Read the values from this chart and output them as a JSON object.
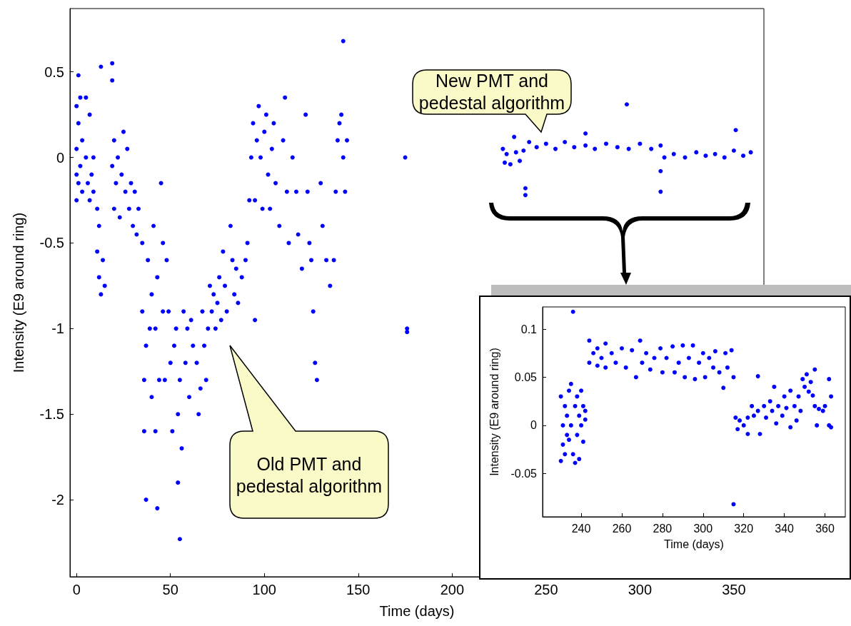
{
  "chart_data": [
    {
      "type": "scatter",
      "xlabel": "Time (days)",
      "ylabel": "Intensity (E9 around ring)",
      "marker": "circle",
      "grid": false,
      "xlim": [
        -3.5,
        366
      ],
      "ylim": [
        -2.45,
        0.87
      ],
      "xticks": [
        0,
        50,
        100,
        150,
        200,
        250,
        300,
        350
      ],
      "yticks": [
        -2,
        -1.5,
        -1,
        -0.5,
        0,
        0.5
      ],
      "annotations": [
        "New PMT and pedestal algorithm",
        "Old PMT and pedestal algorithm"
      ],
      "series": [
        {
          "color": "#0000ff",
          "x": [
            0,
            0,
            0,
            0,
            1,
            1,
            1,
            2,
            2,
            3,
            3,
            5,
            5,
            6,
            7,
            7,
            8,
            9,
            9,
            11,
            11,
            12,
            12,
            13,
            13,
            14,
            15,
            19,
            19,
            19,
            20,
            20,
            21,
            22,
            23,
            24,
            25,
            26,
            27,
            28,
            29,
            30,
            31,
            32,
            33,
            35,
            35,
            36,
            36,
            37,
            37,
            38,
            39,
            40,
            40,
            41,
            42,
            42,
            43,
            43,
            44,
            45,
            46,
            46,
            47,
            48,
            49,
            50,
            51,
            52,
            53,
            54,
            54,
            55,
            55,
            56,
            57,
            58,
            59,
            60,
            61,
            62,
            64,
            65,
            66,
            67,
            68,
            69,
            70,
            71,
            72,
            73,
            74,
            75,
            76,
            77,
            78,
            79,
            80,
            82,
            83,
            84,
            85,
            86,
            88,
            90,
            91,
            92,
            93,
            94,
            95,
            95,
            96,
            97,
            98,
            99,
            100,
            101,
            102,
            103,
            104,
            105,
            106,
            108,
            110,
            111,
            112,
            113,
            115,
            117,
            118,
            120,
            122,
            123,
            124,
            125,
            126,
            127,
            128,
            130,
            131,
            133,
            135,
            137,
            138,
            139,
            140,
            141,
            142,
            142,
            143,
            144,
            175,
            176,
            176,
            227,
            228,
            229,
            231,
            233,
            234,
            236,
            238,
            239,
            239,
            241,
            245,
            250,
            255,
            260,
            265,
            271,
            271,
            276,
            282,
            288,
            293,
            294,
            300,
            306,
            311,
            311,
            311,
            313,
            318,
            324,
            330,
            335,
            340,
            345,
            350,
            351,
            355,
            359
          ],
          "values": [
            0.3,
            0.05,
            -0.1,
            -0.25,
            0.48,
            0.2,
            -0.15,
            0.35,
            -0.05,
            -0.2,
            0.1,
            0.35,
            0.0,
            -0.15,
            -0.25,
            0.25,
            -0.1,
            -0.2,
            0.0,
            -0.3,
            -0.55,
            -0.7,
            -0.4,
            -0.8,
            0.53,
            -0.6,
            -0.75,
            0.55,
            0.45,
            -0.05,
            0.1,
            -0.3,
            -0.15,
            0.0,
            -0.35,
            -0.1,
            0.15,
            -0.2,
            0.05,
            -0.3,
            -0.15,
            -0.4,
            -0.2,
            -0.45,
            -0.3,
            -0.5,
            -0.9,
            -1.3,
            -1.6,
            -2.0,
            -1.1,
            -0.6,
            -1.0,
            -1.4,
            -0.8,
            -0.4,
            -1.0,
            -1.6,
            -2.05,
            -0.7,
            -1.3,
            -0.15,
            -0.5,
            -0.9,
            -1.3,
            -0.6,
            -0.9,
            -1.2,
            -1.6,
            -1.1,
            -1.0,
            -1.5,
            -1.9,
            -2.23,
            -1.3,
            -1.7,
            -0.9,
            -1.2,
            -1.0,
            -1.4,
            -0.95,
            -1.1,
            -1.2,
            -1.5,
            -1.35,
            -0.9,
            -1.1,
            -1.3,
            -1.0,
            -0.75,
            -0.9,
            -0.8,
            -1.0,
            -0.85,
            -0.7,
            -0.95,
            -0.55,
            -0.75,
            -0.9,
            -0.4,
            -0.6,
            -0.8,
            -0.65,
            -0.85,
            -0.7,
            -0.6,
            -0.5,
            -0.25,
            0.0,
            0.2,
            -0.25,
            -0.95,
            0.1,
            0.3,
            0.0,
            -0.3,
            0.15,
            0.25,
            -0.1,
            -0.3,
            0.05,
            0.2,
            -0.15,
            -0.4,
            0.1,
            0.35,
            -0.2,
            -0.5,
            0.0,
            -0.2,
            -0.45,
            -0.65,
            0.25,
            -0.2,
            -0.5,
            -0.6,
            -0.9,
            -1.2,
            -1.3,
            -0.15,
            -0.4,
            -0.6,
            -0.75,
            -0.6,
            -0.2,
            0.1,
            0.2,
            0.25,
            0.68,
            0.0,
            -0.2,
            0.1,
            0.0,
            -1.0,
            -1.02,
            0.05,
            -0.03,
            0.02,
            -0.04,
            0.12,
            0.03,
            -0.02,
            0.04,
            -0.18,
            -0.22,
            0.09,
            0.06,
            0.08,
            0.05,
            0.09,
            0.06,
            0.14,
            0.07,
            0.05,
            0.08,
            0.06,
            0.31,
            0.05,
            0.08,
            0.05,
            0.07,
            -0.08,
            -0.2,
            0.0,
            0.02,
            0.0,
            0.03,
            0.01,
            0.02,
            0.0,
            0.04,
            0.16,
            0.01,
            0.03
          ]
        }
      ]
    },
    {
      "type": "scatter",
      "xlabel": "Time (days)",
      "ylabel": "Intensity (E9 around ring)",
      "marker": "circle",
      "grid": false,
      "xlim": [
        221,
        370
      ],
      "ylim": [
        -0.095,
        0.123
      ],
      "xticks": [
        240,
        260,
        280,
        300,
        320,
        340,
        360
      ],
      "yticks": [
        -0.05,
        0,
        0.05,
        0.1
      ],
      "series": [
        {
          "color": "#0000ff",
          "x": [
            230,
            230,
            231,
            231,
            232,
            232,
            233,
            233,
            234,
            234,
            235,
            235,
            236,
            236,
            237,
            237,
            238,
            238,
            239,
            239,
            240,
            240,
            241,
            241,
            242,
            242,
            244,
            244,
            246,
            248,
            248,
            250,
            252,
            252,
            255,
            257,
            260,
            262,
            265,
            267,
            269,
            270,
            272,
            274,
            276,
            279,
            280,
            282,
            285,
            286,
            288,
            290,
            291,
            293,
            295,
            296,
            298,
            300,
            301,
            303,
            305,
            306,
            308,
            310,
            311,
            312,
            314,
            315,
            315,
            316,
            317,
            318,
            320,
            322,
            322,
            324,
            325,
            327,
            327,
            328,
            330,
            331,
            333,
            334,
            335,
            336,
            337,
            339,
            340,
            341,
            343,
            343,
            345,
            346,
            347,
            348,
            349,
            350,
            351,
            352,
            353,
            354,
            355,
            355,
            356,
            357,
            359,
            360,
            362,
            362,
            363,
            363
          ],
          "values": [
            0.03,
            -0.037,
            0.0,
            -0.02,
            0.02,
            -0.03,
            0.01,
            -0.01,
            0.036,
            -0.015,
            0.043,
            0.0,
            -0.03,
            0.118,
            0.02,
            -0.039,
            -0.01,
            0.03,
            -0.035,
            0.01,
            0.036,
            0.0,
            0.02,
            -0.017,
            0.015,
            0.006,
            0.088,
            0.065,
            0.075,
            0.08,
            0.062,
            0.07,
            0.085,
            0.06,
            0.075,
            0.065,
            0.08,
            0.06,
            0.078,
            0.05,
            0.088,
            0.065,
            0.075,
            0.058,
            0.07,
            0.08,
            0.055,
            0.07,
            0.082,
            0.055,
            0.065,
            0.083,
            0.05,
            0.07,
            0.083,
            0.048,
            0.065,
            0.075,
            0.05,
            0.07,
            0.06,
            0.077,
            0.055,
            0.039,
            0.075,
            0.06,
            0.078,
            0.05,
            -0.082,
            0.008,
            -0.004,
            0.005,
            0.0,
            0.008,
            -0.009,
            0.02,
            0.01,
            0.051,
            0.015,
            -0.009,
            0.02,
            0.008,
            0.025,
            0.015,
            0.04,
            0.002,
            0.02,
            0.01,
            0.03,
            0.018,
            0.036,
            -0.002,
            0.02,
            0.005,
            0.03,
            0.015,
            0.048,
            0.04,
            0.053,
            0.035,
            0.045,
            0.031,
            0.058,
            0.02,
            0.0,
            0.017,
            0.015,
            0.02,
            0.048,
            0.0,
            0.03,
            -0.002
          ]
        }
      ]
    }
  ]
}
